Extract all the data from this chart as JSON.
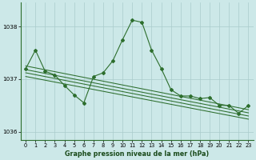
{
  "bg_color": "#cce8e8",
  "grid_color": "#aacccc",
  "line_color": "#2d6e2d",
  "xlim": [
    -0.5,
    23.5
  ],
  "ylim": [
    1035.85,
    1038.45
  ],
  "yticks": [
    1036,
    1037,
    1038
  ],
  "xticks": [
    0,
    1,
    2,
    3,
    4,
    5,
    6,
    7,
    8,
    9,
    10,
    11,
    12,
    13,
    14,
    15,
    16,
    17,
    18,
    19,
    20,
    21,
    22,
    23
  ],
  "xlabel": "Graphe pression niveau de la mer (hPa)",
  "trend_lines": [
    {
      "x0": 0,
      "y0": 1037.25,
      "x1": 23,
      "y1": 1036.42
    },
    {
      "x0": 0,
      "y0": 1037.18,
      "x1": 23,
      "y1": 1036.36
    },
    {
      "x0": 0,
      "y0": 1037.12,
      "x1": 23,
      "y1": 1036.3
    },
    {
      "x0": 0,
      "y0": 1037.05,
      "x1": 23,
      "y1": 1036.24
    }
  ],
  "main_x": [
    0,
    1,
    2,
    3,
    4,
    5,
    6,
    7,
    8,
    9,
    10,
    11,
    12,
    13,
    14,
    15,
    16,
    17,
    18,
    19,
    20,
    21,
    22,
    23
  ],
  "main_y": [
    1037.2,
    1037.55,
    1037.15,
    1037.08,
    1036.88,
    1036.7,
    1036.55,
    1037.05,
    1037.12,
    1037.35,
    1037.75,
    1038.12,
    1038.08,
    1037.55,
    1037.2,
    1036.8,
    1036.68,
    1036.68,
    1036.63,
    1036.65,
    1036.5,
    1036.5,
    1036.35,
    1036.5
  ]
}
